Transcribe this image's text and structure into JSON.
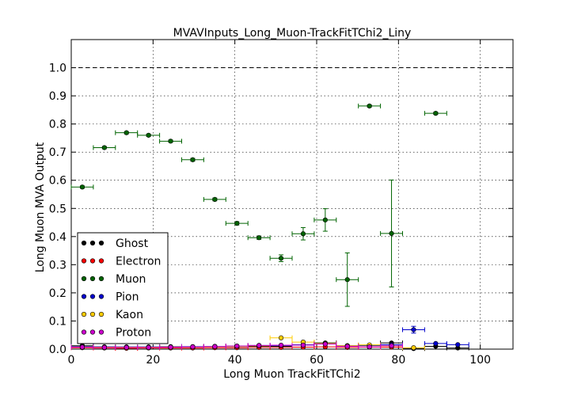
{
  "chart_data": {
    "type": "scatter",
    "title": "MVAVInputs_Long_Muon-TrackFitTChi2_Liny",
    "xlabel": "Long Muon TrackFitTChi2",
    "ylabel": "Long Muon MVA Output",
    "xlim": [
      0,
      108
    ],
    "ylim": [
      0,
      1.1
    ],
    "x_ticks": [
      "0",
      "20",
      "40",
      "60",
      "80",
      "100"
    ],
    "y_ticks": [
      "0.0",
      "0.1",
      "0.2",
      "0.3",
      "0.4",
      "0.5",
      "0.6",
      "0.7",
      "0.8",
      "0.9",
      "1.0"
    ],
    "grid": true,
    "reference_line_y": 1.0,
    "legend_placement": "lower-left",
    "series": [
      {
        "name": "Ghost",
        "color": "#000000",
        "points": [
          {
            "x": 2.7,
            "y": 0.012
          },
          {
            "x": 8.1,
            "y": 0.008
          },
          {
            "x": 13.5,
            "y": 0.006
          },
          {
            "x": 18.9,
            "y": 0.006
          },
          {
            "x": 24.3,
            "y": 0.007
          },
          {
            "x": 29.7,
            "y": 0.008
          },
          {
            "x": 35.1,
            "y": 0.009
          },
          {
            "x": 40.5,
            "y": 0.009
          },
          {
            "x": 45.9,
            "y": 0.01
          },
          {
            "x": 51.3,
            "y": 0.01
          },
          {
            "x": 56.7,
            "y": 0.015
          },
          {
            "x": 62.1,
            "y": 0.022
          },
          {
            "x": 67.5,
            "y": 0.012
          },
          {
            "x": 72.9,
            "y": 0.013
          },
          {
            "x": 78.3,
            "y": 0.022
          },
          {
            "x": 83.7,
            "y": 0.002
          },
          {
            "x": 89.1,
            "y": 0.01
          },
          {
            "x": 94.5,
            "y": 0.004
          }
        ]
      },
      {
        "name": "Electron",
        "color": "#ff0000",
        "points": [
          {
            "x": 2.7,
            "y": 0.005
          },
          {
            "x": 8.1,
            "y": 0.004
          },
          {
            "x": 13.5,
            "y": 0.003
          },
          {
            "x": 18.9,
            "y": 0.004
          },
          {
            "x": 24.3,
            "y": 0.004
          },
          {
            "x": 29.7,
            "y": 0.004
          },
          {
            "x": 35.1,
            "y": 0.005
          },
          {
            "x": 40.5,
            "y": 0.005
          },
          {
            "x": 45.9,
            "y": 0.006
          },
          {
            "x": 51.3,
            "y": 0.006
          },
          {
            "x": 56.7,
            "y": 0.007
          },
          {
            "x": 62.1,
            "y": 0.008
          },
          {
            "x": 67.5,
            "y": 0.006
          },
          {
            "x": 72.9,
            "y": 0.007
          },
          {
            "x": 78.3,
            "y": 0.007
          }
        ]
      },
      {
        "name": "Muon",
        "color": "#006400",
        "points": [
          {
            "x": 2.7,
            "y": 0.576,
            "yerr": 0.004
          },
          {
            "x": 8.1,
            "y": 0.716,
            "yerr": 0.004
          },
          {
            "x": 13.5,
            "y": 0.769,
            "yerr": 0.004
          },
          {
            "x": 18.9,
            "y": 0.76,
            "yerr": 0.004
          },
          {
            "x": 24.3,
            "y": 0.739,
            "yerr": 0.004
          },
          {
            "x": 29.7,
            "y": 0.673,
            "yerr": 0.005
          },
          {
            "x": 35.1,
            "y": 0.532,
            "yerr": 0.005
          },
          {
            "x": 40.5,
            "y": 0.447,
            "yerr": 0.006
          },
          {
            "x": 45.9,
            "y": 0.396,
            "yerr": 0.006
          },
          {
            "x": 51.3,
            "y": 0.323,
            "yerr": 0.012
          },
          {
            "x": 56.7,
            "y": 0.41,
            "yerr": 0.022
          },
          {
            "x": 62.1,
            "y": 0.459,
            "yerr": 0.04
          },
          {
            "x": 67.5,
            "y": 0.247,
            "yerr": 0.095
          },
          {
            "x": 72.9,
            "y": 0.864,
            "yerr": 0.004
          },
          {
            "x": 78.3,
            "y": 0.411,
            "yerr": 0.19
          },
          {
            "x": 89.1,
            "y": 0.838,
            "yerr": 0.004
          }
        ]
      },
      {
        "name": "Pion",
        "color": "#0000cc",
        "points": [
          {
            "x": 2.7,
            "y": 0.01
          },
          {
            "x": 8.1,
            "y": 0.008
          },
          {
            "x": 13.5,
            "y": 0.008
          },
          {
            "x": 18.9,
            "y": 0.008
          },
          {
            "x": 24.3,
            "y": 0.009
          },
          {
            "x": 29.7,
            "y": 0.009
          },
          {
            "x": 35.1,
            "y": 0.01
          },
          {
            "x": 40.5,
            "y": 0.011
          },
          {
            "x": 45.9,
            "y": 0.013
          },
          {
            "x": 51.3,
            "y": 0.013
          },
          {
            "x": 56.7,
            "y": 0.015
          },
          {
            "x": 62.1,
            "y": 0.02
          },
          {
            "x": 67.5,
            "y": 0.012
          },
          {
            "x": 72.9,
            "y": 0.014
          },
          {
            "x": 78.3,
            "y": 0.016
          },
          {
            "x": 83.7,
            "y": 0.069,
            "yerr": 0.012
          },
          {
            "x": 89.1,
            "y": 0.02
          },
          {
            "x": 94.5,
            "y": 0.016
          }
        ]
      },
      {
        "name": "Kaon",
        "color": "#ffcc00",
        "points": [
          {
            "x": 2.7,
            "y": 0.008
          },
          {
            "x": 8.1,
            "y": 0.007
          },
          {
            "x": 13.5,
            "y": 0.007
          },
          {
            "x": 18.9,
            "y": 0.007
          },
          {
            "x": 24.3,
            "y": 0.008
          },
          {
            "x": 29.7,
            "y": 0.008
          },
          {
            "x": 35.1,
            "y": 0.009
          },
          {
            "x": 40.5,
            "y": 0.01
          },
          {
            "x": 45.9,
            "y": 0.012
          },
          {
            "x": 51.3,
            "y": 0.04
          },
          {
            "x": 56.7,
            "y": 0.025
          },
          {
            "x": 62.1,
            "y": 0.02
          },
          {
            "x": 67.5,
            "y": 0.012
          },
          {
            "x": 72.9,
            "y": 0.015
          },
          {
            "x": 78.3,
            "y": 0.012
          },
          {
            "x": 83.7,
            "y": 0.005
          }
        ]
      },
      {
        "name": "Proton",
        "color": "#cc00cc",
        "points": [
          {
            "x": 2.7,
            "y": 0.007
          },
          {
            "x": 8.1,
            "y": 0.006
          },
          {
            "x": 13.5,
            "y": 0.006
          },
          {
            "x": 18.9,
            "y": 0.006
          },
          {
            "x": 24.3,
            "y": 0.007
          },
          {
            "x": 29.7,
            "y": 0.008
          },
          {
            "x": 35.1,
            "y": 0.009
          },
          {
            "x": 40.5,
            "y": 0.011
          },
          {
            "x": 45.9,
            "y": 0.013
          },
          {
            "x": 51.3,
            "y": 0.014
          },
          {
            "x": 56.7,
            "y": 0.014
          },
          {
            "x": 62.1,
            "y": 0.018
          },
          {
            "x": 67.5,
            "y": 0.01
          },
          {
            "x": 72.9,
            "y": 0.008
          },
          {
            "x": 78.3,
            "y": 0.012
          }
        ]
      }
    ],
    "x_bin_half_width": 2.7
  }
}
